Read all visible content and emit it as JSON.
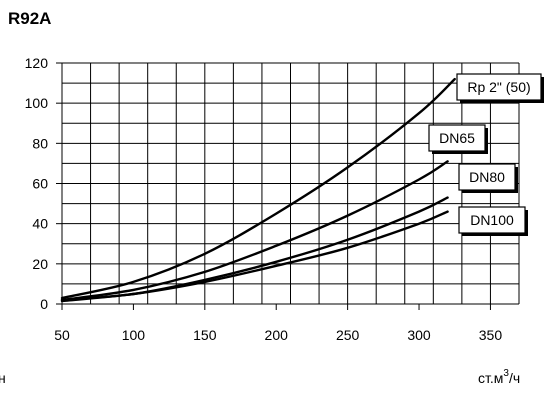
{
  "chart_data": {
    "type": "line",
    "title": "R92A",
    "xlabel": "ст.м3/ч",
    "xlabel_base": "ст.м",
    "xlabel_sup": "3",
    "xlabel_tail": "/ч",
    "ylabel_fragment": "н",
    "xlim": [
      50,
      370
    ],
    "ylim": [
      0,
      120
    ],
    "xticks": [
      50,
      100,
      150,
      200,
      250,
      300,
      350
    ],
    "yticks": [
      0,
      20,
      40,
      60,
      80,
      100,
      120
    ],
    "grid": true,
    "series": [
      {
        "name": "Rp 2\" (50)",
        "x": [
          50,
          100,
          150,
          200,
          250,
          300,
          325
        ],
        "y": [
          3,
          11,
          25,
          45,
          68,
          95,
          112
        ]
      },
      {
        "name": "DN65",
        "x": [
          50,
          100,
          150,
          200,
          250,
          300,
          320
        ],
        "y": [
          2,
          7,
          16,
          29,
          44,
          62,
          71
        ]
      },
      {
        "name": "DN80",
        "x": [
          50,
          100,
          150,
          200,
          250,
          300,
          320
        ],
        "y": [
          2,
          5,
          12,
          21,
          32,
          46,
          53
        ]
      },
      {
        "name": "DN100",
        "x": [
          50,
          100,
          150,
          200,
          250,
          300,
          320
        ],
        "y": [
          1.5,
          5,
          11,
          19,
          28,
          40,
          46
        ]
      }
    ]
  }
}
